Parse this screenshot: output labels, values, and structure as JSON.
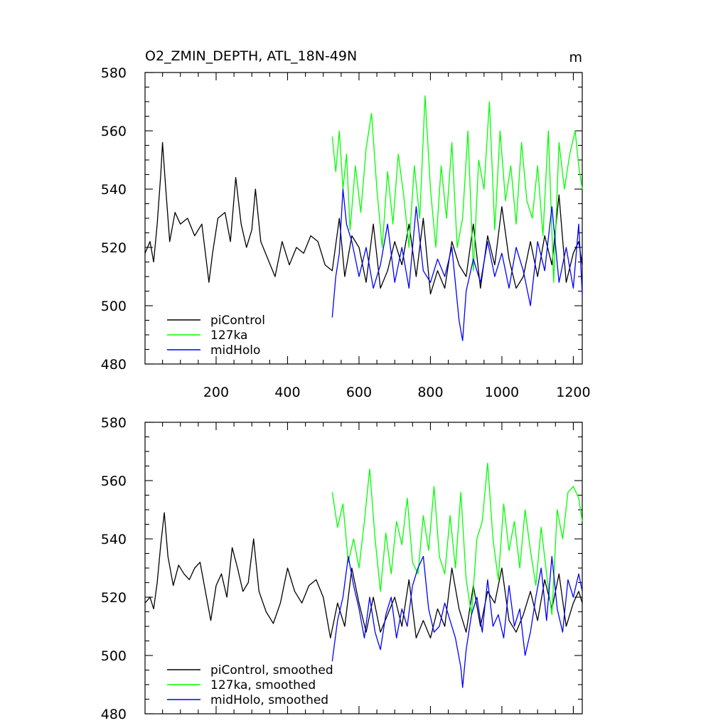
{
  "chart_data": [
    {
      "type": "line",
      "title": "O2_ZMIN_DEPTH, ATL_18N-49N",
      "units": "m",
      "xlabel": "",
      "ylabel": "",
      "xlim": [
        1,
        1225
      ],
      "ylim": [
        480,
        580
      ],
      "x_ticks": [
        200,
        400,
        600,
        800,
        1000,
        1200
      ],
      "x_tick_labels": [
        "200",
        "400",
        "600",
        "800",
        "1000",
        "1200"
      ],
      "y_ticks": [
        480,
        500,
        520,
        540,
        560,
        580
      ],
      "y_tick_labels": [
        "480",
        "500",
        "520",
        "540",
        "560",
        "580"
      ],
      "grid": false,
      "legend_position": "bottom-left",
      "series": [
        {
          "name": "piControl",
          "color": "#000000",
          "x": [
            1,
            15,
            25,
            35,
            45,
            50,
            58,
            70,
            85,
            100,
            120,
            140,
            160,
            180,
            190,
            205,
            225,
            240,
            255,
            270,
            285,
            300,
            310,
            325,
            345,
            365,
            385,
            405,
            425,
            445,
            465,
            485,
            505,
            525,
            545,
            560,
            580,
            600,
            620,
            640,
            660,
            680,
            700,
            720,
            740,
            760,
            780,
            800,
            820,
            840,
            860,
            880,
            900,
            920,
            940,
            960,
            980,
            1000,
            1020,
            1040,
            1060,
            1080,
            1100,
            1120,
            1140,
            1160,
            1180,
            1200,
            1215,
            1225
          ],
          "values": [
            518,
            522,
            515,
            528,
            545,
            556,
            542,
            522,
            532,
            528,
            530,
            524,
            528,
            508,
            518,
            530,
            532,
            522,
            544,
            528,
            520,
            526,
            540,
            522,
            516,
            510,
            522,
            514,
            520,
            518,
            524,
            522,
            514,
            512,
            530,
            510,
            524,
            520,
            508,
            528,
            506,
            512,
            522,
            514,
            528,
            510,
            530,
            504,
            512,
            506,
            522,
            514,
            510,
            528,
            506,
            524,
            514,
            534,
            516,
            506,
            510,
            522,
            510,
            524,
            514,
            538,
            508,
            518,
            522,
            514
          ]
        },
        {
          "name": "127ka",
          "color": "#00ff00",
          "x": [
            525,
            535,
            545,
            555,
            565,
            575,
            590,
            605,
            620,
            635,
            650,
            665,
            680,
            695,
            710,
            725,
            740,
            755,
            770,
            785,
            800,
            815,
            830,
            845,
            860,
            875,
            890,
            905,
            920,
            935,
            950,
            965,
            980,
            995,
            1010,
            1025,
            1040,
            1055,
            1070,
            1085,
            1100,
            1115,
            1130,
            1145,
            1160,
            1175,
            1190,
            1205,
            1215,
            1225
          ],
          "values": [
            558,
            546,
            560,
            540,
            552,
            526,
            548,
            532,
            554,
            566,
            540,
            520,
            546,
            528,
            552,
            538,
            520,
            548,
            530,
            572,
            540,
            520,
            548,
            530,
            556,
            520,
            530,
            560,
            512,
            550,
            540,
            570,
            526,
            560,
            536,
            548,
            528,
            556,
            536,
            530,
            548,
            524,
            560,
            508,
            556,
            540,
            552,
            560,
            548,
            540
          ]
        },
        {
          "name": "midHolo",
          "color": "#0000ff",
          "x": [
            525,
            535,
            545,
            555,
            565,
            580,
            600,
            620,
            640,
            660,
            680,
            700,
            720,
            740,
            760,
            780,
            800,
            820,
            840,
            860,
            880,
            890,
            900,
            920,
            940,
            960,
            980,
            1000,
            1020,
            1040,
            1060,
            1080,
            1100,
            1120,
            1140,
            1160,
            1180,
            1200,
            1215,
            1225
          ],
          "values": [
            496,
            510,
            518,
            540,
            528,
            522,
            510,
            520,
            506,
            514,
            528,
            508,
            520,
            506,
            534,
            512,
            508,
            516,
            510,
            520,
            495,
            488,
            505,
            516,
            508,
            522,
            510,
            518,
            506,
            520,
            512,
            500,
            522,
            512,
            534,
            508,
            520,
            506,
            528,
            504
          ]
        }
      ]
    },
    {
      "type": "line",
      "title": "",
      "xlabel": "",
      "ylabel": "",
      "xlim": [
        1,
        1225
      ],
      "ylim": [
        480,
        580
      ],
      "y_ticks": [
        480,
        500,
        520,
        540,
        560,
        580
      ],
      "y_tick_labels": [
        "480",
        "500",
        "520",
        "540",
        "560",
        "580"
      ],
      "grid": false,
      "legend_position": "bottom-left",
      "series": [
        {
          "name": "piControl, smoothed",
          "color": "#000000",
          "x": [
            1,
            15,
            25,
            35,
            45,
            55,
            65,
            80,
            95,
            110,
            125,
            140,
            155,
            170,
            185,
            200,
            215,
            230,
            245,
            260,
            275,
            290,
            305,
            320,
            340,
            360,
            380,
            400,
            420,
            440,
            460,
            480,
            500,
            520,
            540,
            560,
            580,
            600,
            620,
            640,
            660,
            680,
            700,
            720,
            740,
            760,
            780,
            800,
            820,
            840,
            860,
            880,
            900,
            920,
            940,
            960,
            980,
            1000,
            1020,
            1040,
            1060,
            1080,
            1100,
            1120,
            1140,
            1160,
            1180,
            1200,
            1215,
            1225
          ],
          "values": [
            518,
            520,
            516,
            525,
            538,
            549,
            534,
            524,
            531,
            528,
            526,
            530,
            532,
            522,
            512,
            524,
            528,
            520,
            537,
            530,
            522,
            525,
            540,
            522,
            515,
            511,
            518,
            530,
            522,
            518,
            524,
            526,
            520,
            506,
            518,
            510,
            530,
            518,
            508,
            520,
            508,
            514,
            520,
            510,
            526,
            506,
            512,
            506,
            516,
            510,
            530,
            516,
            508,
            524,
            510,
            522,
            518,
            530,
            512,
            508,
            514,
            522,
            512,
            526,
            516,
            528,
            510,
            518,
            522,
            518
          ]
        },
        {
          "name": "127ka, smoothed",
          "color": "#00ff00",
          "x": [
            525,
            540,
            555,
            570,
            585,
            600,
            615,
            630,
            645,
            660,
            675,
            690,
            705,
            720,
            735,
            750,
            765,
            780,
            795,
            810,
            825,
            840,
            855,
            870,
            885,
            900,
            915,
            930,
            945,
            960,
            975,
            990,
            1005,
            1020,
            1035,
            1050,
            1065,
            1080,
            1095,
            1110,
            1125,
            1140,
            1155,
            1170,
            1185,
            1200,
            1215,
            1225
          ],
          "values": [
            556,
            544,
            552,
            532,
            540,
            530,
            546,
            564,
            540,
            522,
            542,
            528,
            546,
            538,
            554,
            532,
            528,
            548,
            536,
            558,
            534,
            528,
            548,
            530,
            556,
            526,
            514,
            540,
            546,
            566,
            540,
            526,
            552,
            536,
            546,
            530,
            550,
            536,
            524,
            544,
            528,
            514,
            550,
            540,
            556,
            558,
            554,
            546
          ]
        },
        {
          "name": "midHolo, smoothed",
          "color": "#0000ff",
          "x": [
            525,
            540,
            555,
            570,
            585,
            600,
            615,
            630,
            645,
            660,
            675,
            690,
            705,
            720,
            735,
            750,
            765,
            780,
            795,
            810,
            825,
            840,
            855,
            870,
            885,
            890,
            900,
            915,
            930,
            945,
            960,
            975,
            990,
            1005,
            1020,
            1035,
            1050,
            1065,
            1080,
            1095,
            1110,
            1125,
            1140,
            1155,
            1170,
            1185,
            1200,
            1215,
            1225
          ],
          "values": [
            498,
            512,
            520,
            534,
            524,
            516,
            506,
            520,
            508,
            502,
            514,
            520,
            506,
            516,
            510,
            524,
            530,
            534,
            516,
            508,
            510,
            518,
            512,
            506,
            496,
            489,
            502,
            514,
            520,
            508,
            526,
            510,
            514,
            506,
            524,
            510,
            516,
            500,
            508,
            520,
            530,
            512,
            534,
            516,
            508,
            526,
            520,
            528,
            522
          ]
        }
      ]
    }
  ]
}
